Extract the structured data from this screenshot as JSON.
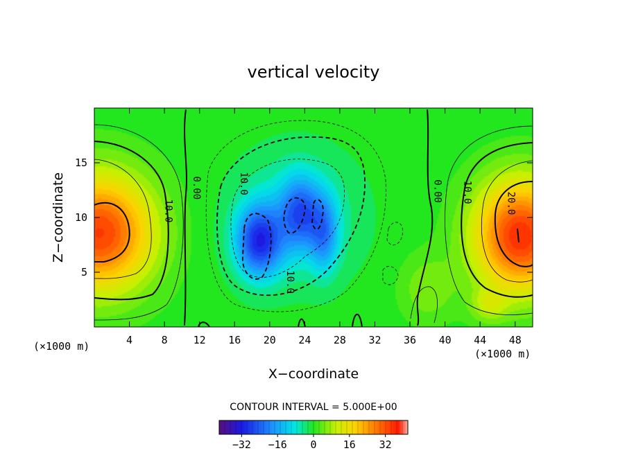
{
  "chart_data": {
    "type": "heatmap",
    "title": "vertical velocity",
    "xlabel": "X−coordinate",
    "ylabel": "Z−coordinate",
    "x_unit_left": "(×1000 m)",
    "x_unit_right": "(×1000 m)",
    "xlim": [
      0,
      50
    ],
    "ylim": [
      0,
      20
    ],
    "x_ticks": [
      4,
      8,
      12,
      16,
      20,
      24,
      28,
      32,
      36,
      40,
      44,
      48
    ],
    "y_ticks": [
      5,
      10,
      15
    ],
    "contour_interval_text": "CONTOUR INTERVAL = 5.000E+00",
    "colorbar": {
      "range": [
        -42,
        42
      ],
      "ticks": [
        -32,
        -16,
        0,
        16,
        32
      ]
    },
    "contour_labels": [
      {
        "text": "0.00",
        "x": 11.3,
        "y": 12.7
      },
      {
        "text": "10.0",
        "x": 8.1,
        "y": 10.6
      },
      {
        "text": "10.0",
        "x": 16.7,
        "y": 13.1
      },
      {
        "text": "10.0",
        "x": 22.0,
        "y": 4.1
      },
      {
        "text": "0.00",
        "x": 38.8,
        "y": 12.4
      },
      {
        "text": "10.0",
        "x": 42.2,
        "y": 12.3
      },
      {
        "text": "20.0",
        "x": 47.2,
        "y": 11.3
      }
    ],
    "field_centers": [
      {
        "x": 0.6,
        "z": 8.6,
        "amplitude": 34
      },
      {
        "x": 48.6,
        "z": 8.3,
        "amplitude": 36
      },
      {
        "x": 18.8,
        "z": 7.8,
        "amplitude": -27
      },
      {
        "x": 23.5,
        "z": 10.5,
        "amplitude": -18
      },
      {
        "x": 26.2,
        "z": 8.5,
        "amplitude": -15
      }
    ]
  }
}
